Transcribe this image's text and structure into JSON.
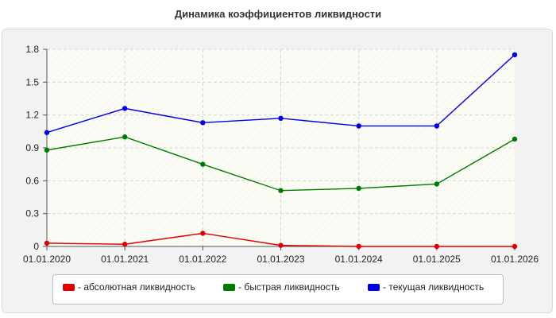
{
  "chart_data": {
    "type": "line",
    "title": "Динамика коэффициентов ликвидности",
    "xlabel": "",
    "ylabel": "",
    "categories": [
      "01.01.2020",
      "01.01.2021",
      "01.01.2022",
      "01.01.2023",
      "01.01.2024",
      "01.01.2025",
      "01.01.2026"
    ],
    "ylim": [
      0,
      1.8
    ],
    "yticks": [
      "0",
      "0.3",
      "0.6",
      "0.9",
      "1.2",
      "1.5",
      "1.8"
    ],
    "grid": true,
    "legend_position": "bottom",
    "series": [
      {
        "name": "- абсолютная ликвидность",
        "color": "#e00000",
        "values": [
          0.03,
          0.02,
          0.12,
          0.01,
          0.0,
          0.0,
          0.0
        ]
      },
      {
        "name": "- быстрая ликвидность",
        "color": "#007a00",
        "values": [
          0.88,
          1.0,
          0.75,
          0.51,
          0.53,
          0.57,
          0.98
        ]
      },
      {
        "name": "- текущая ликвидность",
        "color": "#0000e0",
        "values": [
          1.04,
          1.26,
          1.13,
          1.17,
          1.1,
          1.1,
          1.75
        ]
      }
    ]
  }
}
